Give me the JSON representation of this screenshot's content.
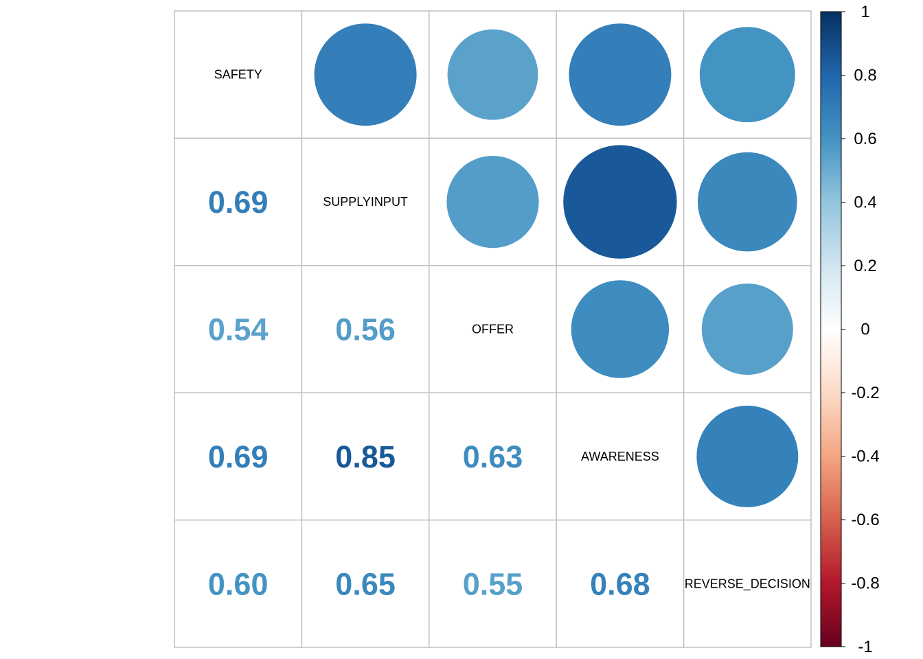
{
  "chart_data": {
    "type": "heatmap",
    "variables": [
      "SAFETY",
      "SUPPLYINPUT",
      "OFFER",
      "AWARENESS",
      "REVERSE_DECISION"
    ],
    "matrix": [
      [
        1.0,
        0.69,
        0.54,
        0.69,
        0.6
      ],
      [
        0.69,
        1.0,
        0.56,
        0.85,
        0.65
      ],
      [
        0.54,
        0.56,
        1.0,
        0.63,
        0.55
      ],
      [
        0.69,
        0.85,
        0.63,
        1.0,
        0.68
      ],
      [
        0.6,
        0.65,
        0.55,
        0.68,
        1.0
      ]
    ],
    "upper_method": "circle",
    "lower_method": "number",
    "diagonal": "variable-name",
    "value_labels": {
      "1,0": "0.69",
      "2,0": "0.54",
      "2,1": "0.56",
      "3,0": "0.69",
      "3,1": "0.85",
      "3,2": "0.63",
      "4,0": "0.60",
      "4,1": "0.65",
      "4,2": "0.55",
      "4,3": "0.68"
    },
    "colorbar": {
      "range": [
        -1,
        1
      ],
      "ticks": [
        "1",
        "0.8",
        "0.6",
        "0.4",
        "0.2",
        "0",
        "-0.2",
        "-0.4",
        "-0.6",
        "-0.8",
        "-1"
      ],
      "colors": [
        "#67001F",
        "#B2182B",
        "#D6604D",
        "#F4A582",
        "#FDDBC7",
        "#FFFFFF",
        "#D1E5F0",
        "#92C5DE",
        "#4393C3",
        "#2166AC",
        "#053061"
      ]
    },
    "grid": true
  }
}
